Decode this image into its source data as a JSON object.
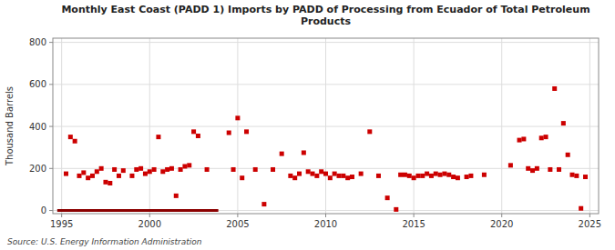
{
  "chart_data": {
    "type": "scatter",
    "title": "Monthly East Coast (PADD 1) Imports by PADD of Processing from Ecuador of Total Petroleum\nProducts",
    "ylabel": "Thousand Barrels",
    "source": "Source: U.S. Energy Information Administration",
    "xlim": [
      1994.5,
      2025.5
    ],
    "ylim": [
      -15,
      820
    ],
    "xticks": [
      1995,
      2000,
      2005,
      2010,
      2015,
      2020,
      2025
    ],
    "yticks": [
      0,
      200,
      400,
      600,
      800
    ],
    "grid": true,
    "series": [
      {
        "type": "line",
        "line_style": "solid",
        "color": "#8b0000",
        "x": [
          1994.75,
          2003.9
        ],
        "values": [
          0,
          0
        ]
      },
      {
        "type": "scatter",
        "marker": "square",
        "color": "#cc0000",
        "x": [
          1995.25,
          1995.5,
          1995.75,
          1996.0,
          1996.25,
          1996.5,
          1996.75,
          1997.0,
          1997.25,
          1997.5,
          1997.75,
          1998.0,
          1998.25,
          1998.5,
          1999.0,
          1999.25,
          1999.5,
          1999.75,
          2000.0,
          2000.25,
          2000.5,
          2000.75,
          2001.0,
          2001.25,
          2001.5,
          2001.75,
          2002.0,
          2002.25,
          2002.5,
          2002.75,
          2003.25,
          2004.5,
          2004.75,
          2005.0,
          2005.25,
          2005.5,
          2006.0,
          2006.5,
          2007.0,
          2007.5,
          2008.0,
          2008.25,
          2008.5,
          2008.75,
          2009.0,
          2009.25,
          2009.5,
          2009.75,
          2010.0,
          2010.25,
          2010.5,
          2010.75,
          2011.0,
          2011.25,
          2011.5,
          2012.0,
          2012.5,
          2013.0,
          2013.5,
          2014.0,
          2014.25,
          2014.5,
          2014.75,
          2015.0,
          2015.25,
          2015.5,
          2015.75,
          2016.0,
          2016.25,
          2016.5,
          2016.75,
          2017.0,
          2017.25,
          2017.5,
          2018.0,
          2018.25,
          2019.0,
          2020.5,
          2021.0,
          2021.25,
          2021.5,
          2021.75,
          2022.0,
          2022.25,
          2022.5,
          2022.75,
          2023.0,
          2023.25,
          2023.5,
          2023.75,
          2024.0,
          2024.25,
          2024.5,
          2024.75
        ],
        "values": [
          175,
          350,
          330,
          165,
          180,
          155,
          165,
          185,
          200,
          135,
          130,
          195,
          165,
          190,
          165,
          195,
          200,
          175,
          185,
          195,
          350,
          185,
          195,
          200,
          70,
          195,
          210,
          215,
          375,
          355,
          195,
          370,
          195,
          440,
          155,
          375,
          195,
          30,
          195,
          270,
          165,
          155,
          175,
          275,
          185,
          175,
          165,
          185,
          175,
          155,
          175,
          165,
          165,
          155,
          160,
          175,
          375,
          165,
          60,
          5,
          170,
          170,
          165,
          155,
          165,
          165,
          175,
          165,
          175,
          170,
          175,
          170,
          160,
          155,
          160,
          165,
          170,
          215,
          335,
          340,
          200,
          190,
          200,
          345,
          350,
          195,
          580,
          195,
          415,
          265,
          170,
          165,
          10,
          160
        ]
      }
    ]
  }
}
